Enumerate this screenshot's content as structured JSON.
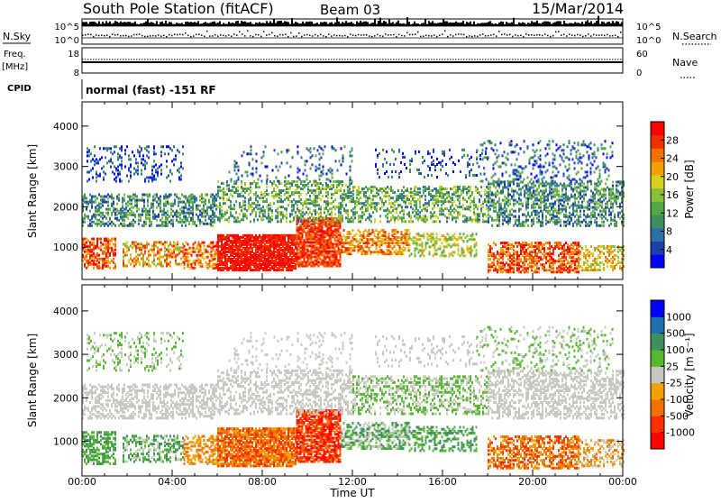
{
  "header": {
    "station": "South Pole Station (fitACF)",
    "beam": "Beam 03",
    "date": "15/Mar/2014"
  },
  "left_labels": {
    "nsky": "N.Sky",
    "freq": "Freq.",
    "freq_unit": "[MHz]",
    "cpid": "CPID"
  },
  "right_labels": {
    "nsearch": "N.Search",
    "nave": "Nave"
  },
  "noise_panel": {
    "left_ticks": [
      "10^5",
      "10^0"
    ],
    "right_ticks": [
      "10^5",
      "10^0"
    ]
  },
  "freq_panel": {
    "left_ticks": [
      "18",
      "8"
    ],
    "right_ticks": [
      "60",
      "0"
    ]
  },
  "cpid_text": "normal (fast) -151 RF",
  "x_axis": {
    "label": "Time UT",
    "ticks": [
      "00:00",
      "04:00",
      "08:00",
      "12:00",
      "16:00",
      "20:00",
      "00:00"
    ]
  },
  "colors": {
    "power": [
      "#0000ff",
      "#1f3fb0",
      "#2e6fa8",
      "#3f8f5f",
      "#55a845",
      "#86c03a",
      "#d8d020",
      "#f0a000",
      "#f07000",
      "#f03000",
      "#ff0000"
    ],
    "velocity": [
      "#ff0000",
      "#ff3000",
      "#f07000",
      "#f0a000",
      "#c8c8c0",
      "#55b830",
      "#3f8f5f",
      "#1f70b0",
      "#0000ff"
    ]
  },
  "chart_data": [
    {
      "type": "heatmap",
      "quantity": "Power",
      "ylabel": "Slant Range [km]",
      "yticks": [
        1000,
        2000,
        3000,
        4000
      ],
      "ylim": [
        200,
        4600
      ],
      "xlim": [
        0,
        24
      ],
      "colorbar": {
        "label": "Power [dB]",
        "ticks": [
          "4",
          "8",
          "12",
          "16",
          "20",
          "24",
          "28"
        ],
        "range": [
          0,
          32
        ]
      }
    },
    {
      "type": "heatmap",
      "quantity": "Velocity",
      "ylabel": "Slant Range [km]",
      "yticks": [
        1000,
        2000,
        3000,
        4000
      ],
      "ylim": [
        200,
        4600
      ],
      "xlim": [
        0,
        24
      ],
      "colorbar": {
        "label": "Velocity [m s⁻¹]",
        "ticks": [
          "-1000",
          "-500",
          "-100",
          "-25",
          "25",
          "100",
          "500",
          "1000"
        ]
      }
    }
  ]
}
